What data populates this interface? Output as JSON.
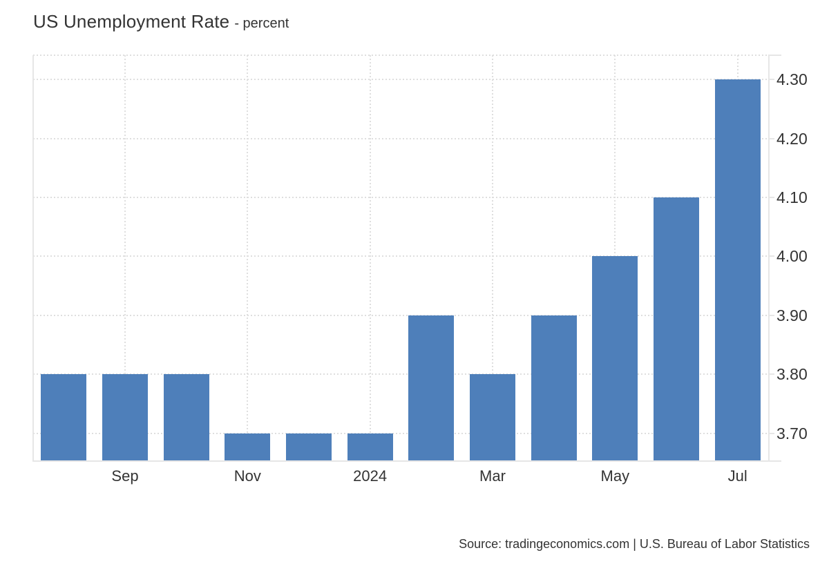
{
  "title": {
    "text": "US Unemployment Rate",
    "subtitle": "- percent"
  },
  "footer": {
    "source": "Source: tradingeconomics.com | U.S. Bureau of Labor Statistics"
  },
  "colors": {
    "bar": "#4e7fba",
    "grid": "#dedede",
    "axis": "#e6e6e6",
    "text": "#333333",
    "background": "#ffffff"
  },
  "chart_data": {
    "type": "bar",
    "title": "US Unemployment Rate",
    "subtitle": "percent",
    "categories": [
      "",
      "Sep",
      "",
      "Nov",
      "",
      "2024",
      "",
      "Mar",
      "",
      "May",
      "",
      "Jul"
    ],
    "values": [
      3.8,
      3.8,
      3.8,
      3.7,
      3.7,
      3.7,
      3.9,
      3.8,
      3.9,
      4.0,
      4.1,
      4.3
    ],
    "y_ticks": [
      "3.70",
      "3.80",
      "3.90",
      "4.00",
      "4.10",
      "4.20",
      "4.30"
    ],
    "ylim": [
      3.653,
      4.341
    ],
    "grid": "dotted",
    "legend": "none",
    "y_axis_side": "right",
    "bar_color": "#4e7fba"
  }
}
